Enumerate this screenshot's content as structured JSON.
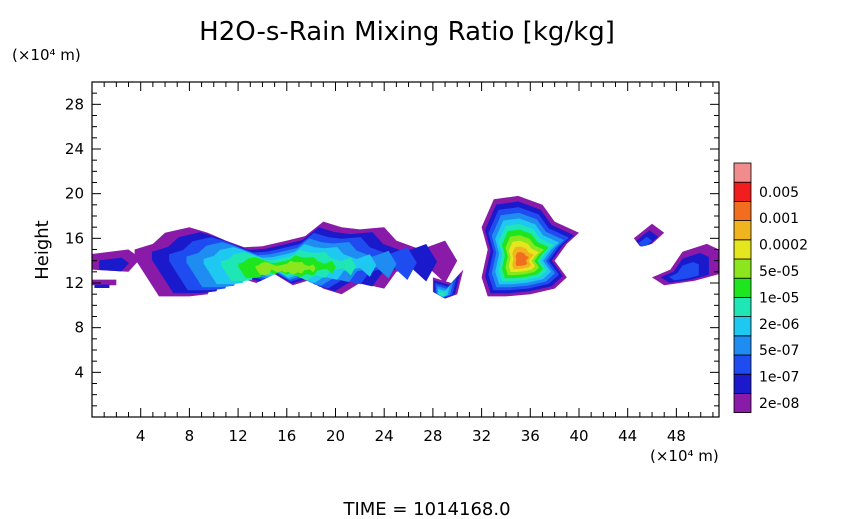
{
  "chart_data": {
    "type": "heatmap",
    "title": "H2O-s-Rain Mixing Ratio [kg/kg]",
    "ylabel": "Height",
    "y_unit": "(×10⁴ m)",
    "x_unit": "(×10⁴ m)",
    "xlim": [
      0,
      51.5
    ],
    "ylim": [
      0,
      30
    ],
    "x_ticks": [
      "4",
      "8",
      "12",
      "16",
      "20",
      "24",
      "28",
      "32",
      "36",
      "40",
      "44",
      "48"
    ],
    "y_ticks": [
      "4",
      "8",
      "12",
      "16",
      "20",
      "24",
      "28"
    ],
    "footer": "TIME = 1014168.0",
    "colorbar": {
      "colors": [
        "#8a1aa8",
        "#1a1acc",
        "#1e4cf0",
        "#1e8cf0",
        "#1ec8f0",
        "#1ee6b4",
        "#1ee61e",
        "#8ce61e",
        "#e6e61e",
        "#f0b41e",
        "#f06e1e",
        "#f01e1e",
        "#f08c8c"
      ],
      "labels": [
        "2e-08",
        "1e-07",
        "5e-07",
        "2e-06",
        "1e-05",
        "5e-05",
        "0.0002",
        "0.001",
        "0.005"
      ]
    },
    "clouds": [
      {
        "outline": [
          [
            0,
            13.2
          ],
          [
            3,
            13.0
          ],
          [
            4,
            14.2
          ],
          [
            3,
            15.0
          ],
          [
            0,
            14.6
          ]
        ],
        "max_level": 1
      },
      {
        "outline": [
          [
            0,
            11.8
          ],
          [
            2,
            11.8
          ],
          [
            2,
            12.3
          ],
          [
            0,
            12.3
          ]
        ],
        "max_level": 1
      },
      {
        "outline": [
          [
            3.5,
            15.0
          ],
          [
            5,
            15.5
          ],
          [
            6,
            16.5
          ],
          [
            8,
            17.0
          ],
          [
            9.5,
            16.5
          ],
          [
            11,
            15.8
          ],
          [
            12.5,
            15.2
          ],
          [
            14,
            15.3
          ],
          [
            16,
            15.8
          ],
          [
            17.5,
            16.2
          ],
          [
            19,
            17.5
          ],
          [
            20.5,
            17.0
          ],
          [
            22,
            16.8
          ],
          [
            24,
            17.0
          ],
          [
            25,
            15.8
          ],
          [
            27,
            15.0
          ],
          [
            29,
            15.8
          ],
          [
            30,
            14.0
          ],
          [
            29,
            12.0
          ],
          [
            27.5,
            13.5
          ],
          [
            25,
            13.0
          ],
          [
            24,
            11.5
          ],
          [
            22,
            12.0
          ],
          [
            20.5,
            11.0
          ],
          [
            19,
            11.5
          ],
          [
            18,
            12.3
          ],
          [
            16.5,
            11.8
          ],
          [
            15,
            12.8
          ],
          [
            13.5,
            12.0
          ],
          [
            12,
            12.5
          ],
          [
            10.5,
            13.5
          ],
          [
            9.5,
            11.0
          ],
          [
            8,
            10.8
          ],
          [
            5.5,
            10.8
          ],
          [
            4.5,
            12.5
          ],
          [
            3.5,
            14.2
          ]
        ],
        "max_level": 7
      },
      {
        "outline": [
          [
            28,
            12.5
          ],
          [
            29.5,
            12.0
          ],
          [
            30.5,
            13.2
          ],
          [
            30,
            11.0
          ],
          [
            29,
            10.6
          ],
          [
            28,
            11.2
          ]
        ],
        "max_level": 5
      },
      {
        "outline": [
          [
            32,
            17.0
          ],
          [
            33,
            19.5
          ],
          [
            35,
            19.8
          ],
          [
            37,
            19.0
          ],
          [
            38,
            17.5
          ],
          [
            40,
            16.5
          ],
          [
            39,
            15.5
          ],
          [
            38,
            14.0
          ],
          [
            39,
            12.5
          ],
          [
            38,
            11.5
          ],
          [
            36,
            11.0
          ],
          [
            34,
            10.8
          ],
          [
            32.5,
            10.8
          ],
          [
            32,
            12.5
          ],
          [
            32.5,
            15.0
          ]
        ],
        "max_level": 10
      },
      {
        "outline": [
          [
            44.5,
            16.0
          ],
          [
            46,
            17.3
          ],
          [
            47,
            16.5
          ],
          [
            46,
            15.5
          ],
          [
            45,
            15.3
          ]
        ],
        "max_level": 2
      },
      {
        "outline": [
          [
            46,
            12.5
          ],
          [
            47.5,
            13.2
          ],
          [
            48.5,
            14.8
          ],
          [
            50.5,
            15.5
          ],
          [
            51.5,
            15.0
          ],
          [
            51.5,
            12.8
          ],
          [
            49.5,
            12.2
          ],
          [
            47,
            11.8
          ]
        ],
        "max_level": 2
      }
    ]
  }
}
